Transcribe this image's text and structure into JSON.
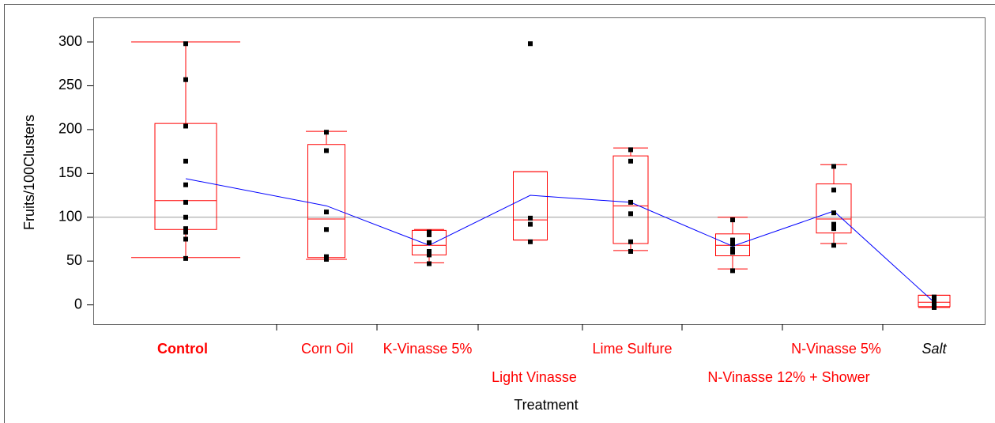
{
  "chart_data": {
    "type": "box",
    "x_label": "Treatment",
    "y_label": "Fruits/100Clusters",
    "categories": [
      "Control",
      "Corn Oil",
      "K-Vinasse 5%",
      "Light Vinasse",
      "Lime Sulfure",
      "N-Vinasse 12% + Shower",
      "N-Vinasse 5%",
      "Salt"
    ],
    "boxes": [
      {
        "low": 54,
        "q1": 86,
        "median": 119,
        "q3": 207,
        "high": 300
      },
      {
        "low": 52,
        "q1": 54,
        "median": 98,
        "q3": 183,
        "high": 198
      },
      {
        "low": 48,
        "q1": 57,
        "median": 68,
        "q3": 85,
        "high": 86
      },
      {
        "low": 74,
        "q1": 74,
        "median": 97,
        "q3": 152,
        "high": 152
      },
      {
        "low": 62,
        "q1": 70,
        "median": 113,
        "q3": 170,
        "high": 179
      },
      {
        "low": 41,
        "q1": 56,
        "median": 68,
        "q3": 81,
        "high": 100
      },
      {
        "low": 70,
        "q1": 82,
        "median": 98,
        "q3": 138,
        "high": 160
      },
      {
        "low": -3,
        "q1": -2,
        "median": 3,
        "q3": 11,
        "high": 11
      }
    ],
    "means": [
      144,
      113,
      68,
      125,
      117,
      67,
      107,
      3
    ],
    "points": [
      [
        298,
        257,
        204,
        164,
        137,
        117,
        100,
        87,
        83,
        75,
        53
      ],
      [
        197,
        176,
        106,
        86,
        55,
        52
      ],
      [
        83,
        80,
        71,
        61,
        57,
        47
      ],
      [
        298,
        99,
        92,
        72
      ],
      [
        177,
        164,
        117,
        104,
        72,
        61
      ],
      [
        97,
        74,
        70,
        64,
        60,
        39
      ],
      [
        158,
        131,
        105,
        92,
        87,
        68
      ],
      [
        9,
        4,
        1,
        -3
      ]
    ],
    "reference_line": 100,
    "box_color": "#ff0000",
    "mean_color": "#0000ff",
    "point_color": "#000000",
    "ylim": [
      -22,
      328
    ],
    "yticks": [
      0,
      50,
      100,
      150,
      200,
      250,
      300
    ]
  }
}
